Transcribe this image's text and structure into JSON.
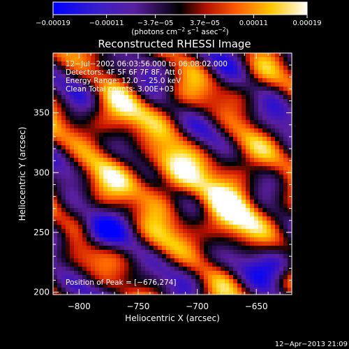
{
  "colorbar": {
    "ticks": [
      {
        "value": -0.00019,
        "label": "−0.00019"
      },
      {
        "value": -0.00011,
        "label": "−0.00011"
      },
      {
        "value": -3.7e-05,
        "label": "−3.7e−05"
      },
      {
        "value": 3.7e-05,
        "label": "3.7e−05"
      },
      {
        "value": 0.00011,
        "label": "0.00011"
      },
      {
        "value": 0.00019,
        "label": "0.00019"
      }
    ],
    "range": [
      -0.00019,
      0.00019
    ],
    "units_pre": "(photons cm",
    "units_exp1": "−2",
    "units_mid": " s",
    "units_exp2": "−1",
    "units_mid2": " asec",
    "units_exp3": "−2",
    "units_post": ")"
  },
  "chart_data": {
    "type": "heatmap",
    "title": "Reconstructed RHESSI Image",
    "xlabel": "Heliocentric X (arcsec)",
    "ylabel": "Heliocentric Y (arcsec)",
    "xlim": [
      -822,
      -620
    ],
    "ylim": [
      198,
      400
    ],
    "xticks": [
      -800,
      -750,
      -700,
      -650
    ],
    "yticks": [
      200,
      250,
      300,
      350
    ],
    "colormap": [
      "#0000ff",
      "#5a1f9e",
      "#000000",
      "#c81400",
      "#ff6a00",
      "#ffd000",
      "#ffffff"
    ],
    "annotations": [
      "12−Jul−2002 06:03:56.000 to 06:08:02.000",
      "Detectors: 4F 5F 6F 7F 8F, Att 0",
      "Energy Range: 12.0 − 25.0 keV",
      "Clean     Total counts: 3.00E+03"
    ],
    "peak_label": "Position of Peak = [−676,274]",
    "peak": [
      -676,
      274
    ]
  },
  "footer": {
    "timestamp": "12−Apr−2013 21:09"
  }
}
